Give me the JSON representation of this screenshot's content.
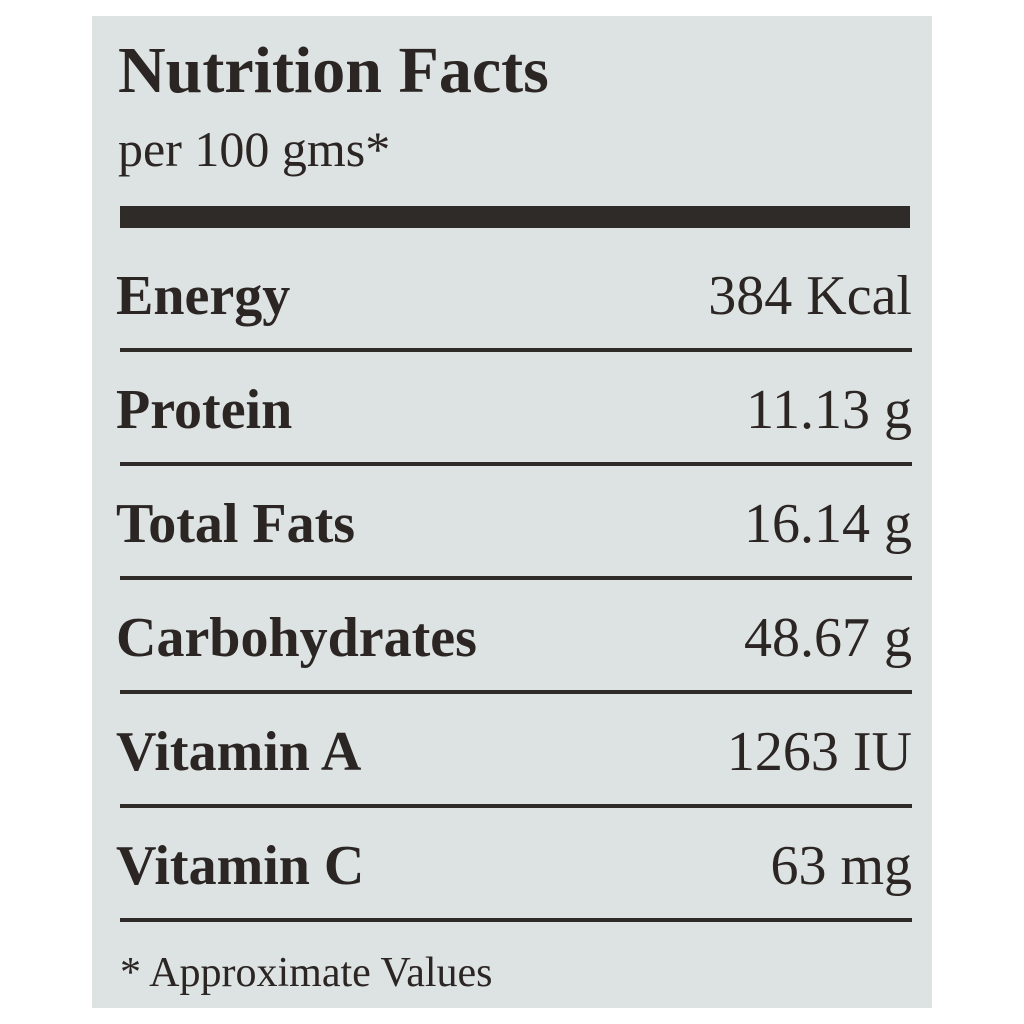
{
  "header": {
    "title": "Nutrition Facts",
    "subtitle": "per 100 gms*"
  },
  "table": {
    "rows": [
      [
        "Energy",
        "384 Kcal"
      ],
      [
        "Protein",
        "11.13 g"
      ],
      [
        "Total Fats",
        "16.14 g"
      ],
      [
        "Carbohydrates",
        "48.67 g"
      ],
      [
        "Vitamin A",
        "1263 IU"
      ],
      [
        "Vitamin C",
        "63 mg"
      ]
    ]
  },
  "footnote": "* Approximate Values"
}
